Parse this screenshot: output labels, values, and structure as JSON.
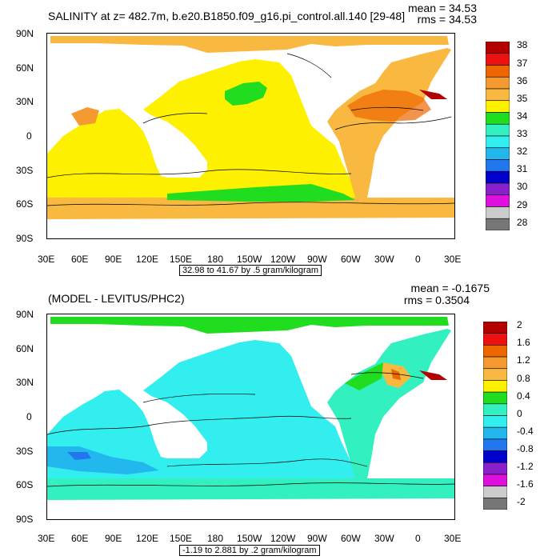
{
  "panels": [
    {
      "title": "SALINITY at z= 482.7m, b.e20.B1850.f09_g16.pi_control.all.140 [29-48]",
      "stats": {
        "mean": "mean = 34.53",
        "rms": "rms = 34.53"
      },
      "caption": "32.98 to 41.67 by .5 gram/kilogram",
      "colorbar": {
        "labels": [
          "38",
          "37",
          "36",
          "35",
          "34",
          "33",
          "32",
          "31",
          "30",
          "29",
          "28"
        ],
        "colors": [
          "#b30000",
          "#ee1111",
          "#ee6600",
          "#f49a30",
          "#f9b840",
          "#fdf000",
          "#20dd20",
          "#33f0c0",
          "#33eeee",
          "#22b8ee",
          "#2277ee",
          "#0000cc",
          "#8a20cc",
          "#dd10dd",
          "#cccccc",
          "#777777"
        ]
      }
    },
    {
      "title": "(MODEL - LEVITUS/PHC2)",
      "stats": {
        "mean": "mean = -0.1675",
        "rms": "rms = 0.3504"
      },
      "caption": "-1.19 to 2.881 by .2 gram/kilogram",
      "colorbar": {
        "labels": [
          "2",
          "1.6",
          "1.2",
          "0.8",
          "0.4",
          "0",
          "-0.4",
          "-0.8",
          "-1.2",
          "-1.6",
          "-2"
        ],
        "colors": [
          "#b30000",
          "#ee1111",
          "#ee6600",
          "#f49a30",
          "#f9b840",
          "#fdf000",
          "#20dd20",
          "#33f0c0",
          "#33eeee",
          "#22b8ee",
          "#2277ee",
          "#0000cc",
          "#8a20cc",
          "#dd10dd",
          "#cccccc",
          "#777777"
        ]
      }
    }
  ],
  "axes": {
    "lat_labels": [
      "90N",
      "60N",
      "30N",
      "0",
      "30S",
      "60S",
      "90S"
    ],
    "lon_labels": [
      "30E",
      "60E",
      "90E",
      "120E",
      "150E",
      "180",
      "150W",
      "120W",
      "90W",
      "60W",
      "30W",
      "0",
      "30E"
    ]
  }
}
